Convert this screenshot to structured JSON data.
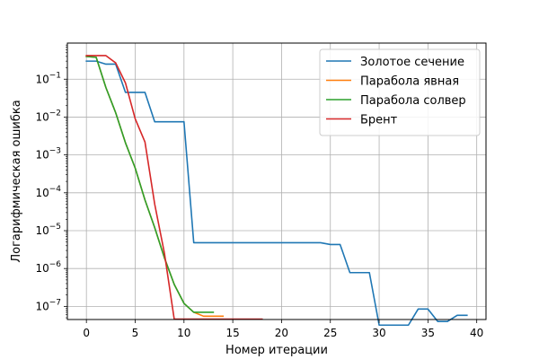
{
  "chart_data": {
    "type": "line",
    "xlabel": "Номер итерации",
    "ylabel": "Логарифмическая ошибка",
    "y_scale": "log",
    "xlim": [
      -1.95,
      40.95
    ],
    "ylim": [
      4.5e-08,
      0.9
    ],
    "x_ticks": [
      0,
      5,
      10,
      15,
      20,
      25,
      30,
      35,
      40
    ],
    "x_tick_labels": [
      "0",
      "5",
      "10",
      "15",
      "20",
      "25",
      "30",
      "35",
      "40"
    ],
    "y_ticks": [
      1e-07,
      1e-06,
      1e-05,
      0.0001,
      0.001,
      0.01,
      0.1
    ],
    "y_tick_labels": [
      {
        "base": "10",
        "exp": "−7"
      },
      {
        "base": "10",
        "exp": "−6"
      },
      {
        "base": "10",
        "exp": "−5"
      },
      {
        "base": "10",
        "exp": "−4"
      },
      {
        "base": "10",
        "exp": "−3"
      },
      {
        "base": "10",
        "exp": "−2"
      },
      {
        "base": "10",
        "exp": "−1"
      }
    ],
    "grid": true,
    "legend_position": "top-right",
    "series": [
      {
        "name": "Золотое сечение",
        "color": "#1f77b4",
        "x": [
          0,
          1,
          2,
          3,
          4,
          5,
          6,
          7,
          8,
          9,
          10,
          11,
          12,
          13,
          14,
          15,
          16,
          17,
          18,
          19,
          20,
          21,
          22,
          23,
          24,
          25,
          26,
          27,
          28,
          29,
          30,
          31,
          32,
          33,
          34,
          35,
          36,
          37,
          38,
          39
        ],
        "y": [
          0.3,
          0.3,
          0.25,
          0.25,
          0.045,
          0.045,
          0.045,
          0.0075,
          0.0075,
          0.0075,
          0.0075,
          4.8e-06,
          4.8e-06,
          4.8e-06,
          4.8e-06,
          4.8e-06,
          4.8e-06,
          4.8e-06,
          4.8e-06,
          4.8e-06,
          4.8e-06,
          4.8e-06,
          4.8e-06,
          4.8e-06,
          4.8e-06,
          4.3e-06,
          4.3e-06,
          7.8e-07,
          7.8e-07,
          7.8e-07,
          3.2e-08,
          3.2e-08,
          3.2e-08,
          3.2e-08,
          8.5e-08,
          8.5e-08,
          4e-08,
          4e-08,
          5.8e-08,
          5.8e-08
        ]
      },
      {
        "name": "Парабола явная",
        "color": "#ff7f0e",
        "x": [
          0,
          1,
          2,
          3,
          4,
          5,
          6,
          7,
          8,
          9,
          10,
          11,
          12,
          13,
          14
        ],
        "y": [
          0.4,
          0.38,
          0.06,
          0.013,
          0.0021,
          0.00045,
          6.5e-05,
          1.2e-05,
          1.9e-06,
          3.8e-07,
          1.2e-07,
          7e-08,
          5.5e-08,
          5.5e-08,
          5.5e-08
        ]
      },
      {
        "name": "Парабола солвер",
        "color": "#2ca02c",
        "x": [
          0,
          1,
          2,
          3,
          4,
          5,
          6,
          7,
          8,
          9,
          10,
          11,
          12,
          13
        ],
        "y": [
          0.4,
          0.38,
          0.06,
          0.013,
          0.0021,
          0.00045,
          6.5e-05,
          1.2e-05,
          1.9e-06,
          3.8e-07,
          1.2e-07,
          7e-08,
          7e-08,
          7e-08
        ]
      },
      {
        "name": "Брент",
        "color": "#d62728",
        "x": [
          0,
          1,
          2,
          3,
          4,
          5,
          6,
          7,
          8,
          9,
          10,
          11,
          12,
          13,
          14,
          15,
          16,
          17,
          18
        ],
        "y": [
          0.42,
          0.42,
          0.42,
          0.27,
          0.08,
          0.009,
          0.0022,
          5e-05,
          2.5e-06,
          4.6e-08,
          4.6e-08,
          4.6e-08,
          4.6e-08,
          4.6e-08,
          4.6e-08,
          4.6e-08,
          4.6e-08,
          4.6e-08,
          4.6e-08
        ]
      }
    ]
  }
}
